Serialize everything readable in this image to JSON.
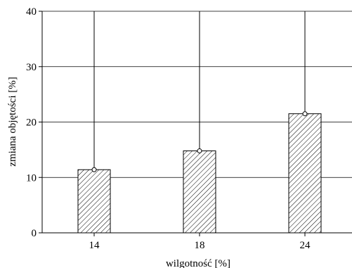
{
  "chart_data": {
    "type": "bar",
    "title": "",
    "xlabel": "wilgotność [%]",
    "ylabel": "zmiana objętości [%]",
    "categories": [
      "14",
      "18",
      "24"
    ],
    "values": [
      11.4,
      14.8,
      21.5
    ],
    "error_upper": [
      40,
      40,
      40
    ],
    "ylim": [
      0,
      40
    ],
    "yticks": [
      0,
      10,
      20,
      30,
      40
    ],
    "grid": true,
    "legend": "none",
    "bar_fill": "diagonal-hatch",
    "colors": {
      "bar_stroke": "#000000",
      "hatch": "#000000",
      "marker_fill": "#ffffff",
      "grid": "#000000"
    }
  }
}
